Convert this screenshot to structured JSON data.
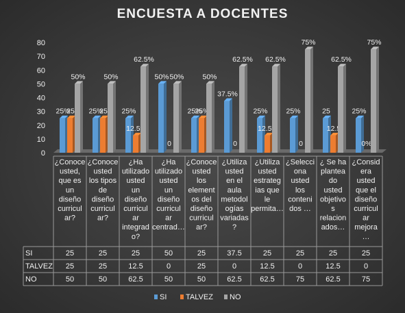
{
  "chart_data": {
    "type": "bar",
    "title": "ENCUESTA  A DOCENTES",
    "ylim": [
      0,
      80
    ],
    "yticks": [
      0,
      10,
      20,
      30,
      40,
      50,
      60,
      70,
      80
    ],
    "grid": false,
    "legend_position": "bottom",
    "categories": [
      [
        "¿Conoce",
        "usted,",
        "que es",
        "un",
        "diseño",
        "curricul",
        "ar?"
      ],
      [
        "¿Conoce",
        "usted",
        "los tipos",
        "de",
        "diseño",
        "curricul",
        "ar?"
      ],
      [
        "¿Ha",
        "utilizado",
        "usted",
        "un",
        "diseño",
        "curricul",
        "ar",
        "integrad",
        "o?"
      ],
      [
        "¿Ha",
        "utilizado",
        "usted",
        "un",
        "diseño",
        "curricul",
        "ar",
        "centrad…"
      ],
      [
        "¿Conoce",
        "usted",
        "los",
        "element",
        "os del",
        "diseño",
        "curricul",
        "ar?"
      ],
      [
        "¿Utiliza",
        "usted",
        "en el",
        "aula",
        "metodol",
        "ogías",
        "variadas",
        "?"
      ],
      [
        "¿Utiliza",
        "usted",
        "estrateg",
        "ias que",
        "le",
        "permita…"
      ],
      [
        "¿Selecci",
        "ona",
        "usted",
        "los",
        "conteni",
        "dos …"
      ],
      [
        "¿ Se ha",
        "plantea",
        "do",
        "usted",
        "objetivo",
        "s",
        "relacion",
        "ados…"
      ],
      [
        "¿Consid",
        "era",
        "usted",
        "que el",
        "diseño",
        "curricul",
        "ar",
        "mejora",
        "…"
      ]
    ],
    "series": [
      {
        "name": "SI",
        "color": "#5b9bd5",
        "values": [
          25,
          25,
          25,
          50,
          25,
          37.5,
          25,
          25,
          25,
          25
        ],
        "labels": [
          "25%",
          "25%",
          "25%",
          "50%",
          "25%",
          "37.5%",
          "25%",
          "25%",
          "25",
          "25%"
        ],
        "table": [
          "25",
          "25",
          "25",
          "50",
          "25",
          "37.5",
          "25",
          "25",
          "25",
          "25"
        ]
      },
      {
        "name": "TALVEZ",
        "color": "#ed7d31",
        "values": [
          25,
          25,
          12.5,
          0,
          25,
          0,
          12.5,
          0,
          12.5,
          0
        ],
        "labels": [
          "25",
          "25",
          "12.5%",
          "0",
          "25%",
          "0",
          "12.5%",
          "0",
          "12.5",
          "0%"
        ],
        "table": [
          "25",
          "25",
          "12.5",
          "0",
          "25",
          "0",
          "12.5",
          "0",
          "12.5",
          "0"
        ]
      },
      {
        "name": "NO",
        "color": "#a5a5a5",
        "values": [
          50,
          50,
          62.5,
          50,
          50,
          62.5,
          62.5,
          75,
          62.5,
          75
        ],
        "labels": [
          "50%",
          "50%",
          "62.5%",
          "50%",
          "50%",
          "62.5%",
          "62.5%",
          "75%",
          "62.5%",
          "75%"
        ],
        "table": [
          "50",
          "50",
          "62.5",
          "50",
          "50",
          "62.5",
          "62.5",
          "75",
          "62.5",
          "75"
        ]
      }
    ]
  }
}
